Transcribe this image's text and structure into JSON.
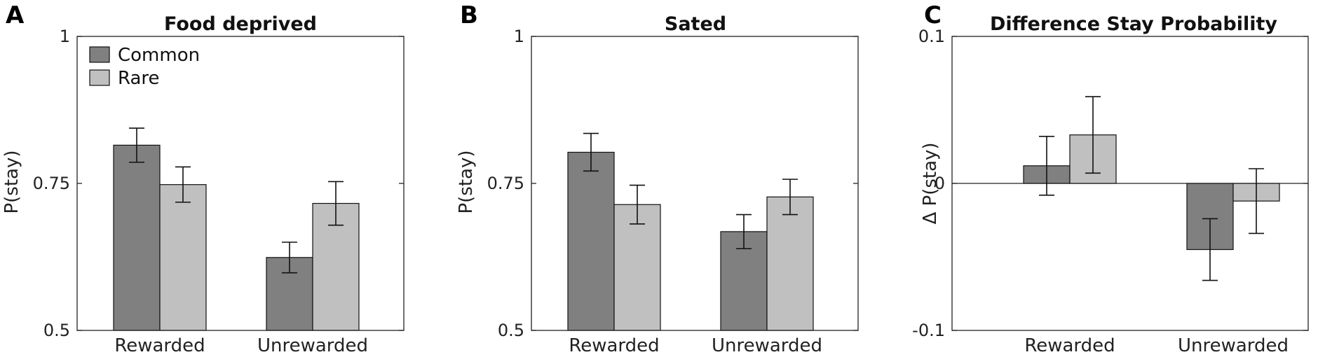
{
  "chart_data": [
    {
      "panel": "A",
      "type": "bar",
      "title": "Food deprived",
      "ylabel": "P(stay)",
      "xlabel": "",
      "categories": [
        "Rewarded",
        "Unrewarded"
      ],
      "ylim": [
        0.5,
        1
      ],
      "yticks": [
        0.5,
        0.75,
        1
      ],
      "ytick_labels": [
        "0.5",
        "0.75",
        "1"
      ],
      "legend": {
        "placement": "top-left",
        "entries": [
          "Common",
          "Rare"
        ]
      },
      "series": [
        {
          "name": "Common",
          "color": "#808080",
          "values": [
            0.815,
            0.624
          ],
          "errors": [
            0.029,
            0.026
          ]
        },
        {
          "name": "Rare",
          "color": "#c0c0c0",
          "values": [
            0.748,
            0.716
          ],
          "errors": [
            0.03,
            0.037
          ]
        }
      ]
    },
    {
      "panel": "B",
      "type": "bar",
      "title": "Sated",
      "ylabel": "P(stay)",
      "xlabel": "",
      "categories": [
        "Rewarded",
        "Unrewarded"
      ],
      "ylim": [
        0.5,
        1
      ],
      "yticks": [
        0.5,
        0.75,
        1
      ],
      "ytick_labels": [
        "0.5",
        "0.75",
        "1"
      ],
      "series": [
        {
          "name": "Common",
          "color": "#808080",
          "values": [
            0.803,
            0.668
          ],
          "errors": [
            0.032,
            0.029
          ]
        },
        {
          "name": "Rare",
          "color": "#c0c0c0",
          "values": [
            0.714,
            0.727
          ],
          "errors": [
            0.033,
            0.03
          ]
        }
      ]
    },
    {
      "panel": "C",
      "type": "bar",
      "title": "Difference Stay Probability",
      "ylabel": "Δ P(stay)",
      "xlabel": "",
      "categories": [
        "Rewarded",
        "Unrewarded"
      ],
      "ylim": [
        -0.1,
        0.1
      ],
      "yticks": [
        -0.1,
        0,
        0.1
      ],
      "ytick_labels": [
        "-0.1",
        "0",
        "0.1"
      ],
      "zero_line": true,
      "series": [
        {
          "name": "Common",
          "color": "#808080",
          "values": [
            0.012,
            -0.045
          ],
          "errors": [
            0.02,
            0.021
          ]
        },
        {
          "name": "Rare",
          "color": "#c0c0c0",
          "values": [
            0.033,
            -0.012
          ],
          "errors": [
            0.026,
            0.022
          ]
        }
      ]
    }
  ]
}
